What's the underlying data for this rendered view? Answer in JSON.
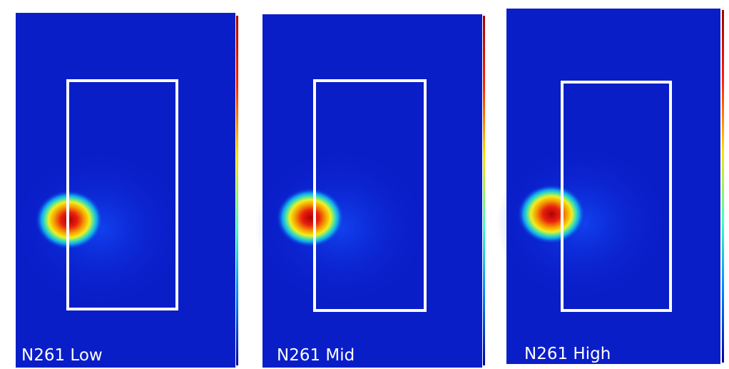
{
  "panels": [
    {
      "label": "N261 Low"
    },
    {
      "label": "N261 Mid"
    },
    {
      "label": "N261 High"
    }
  ]
}
